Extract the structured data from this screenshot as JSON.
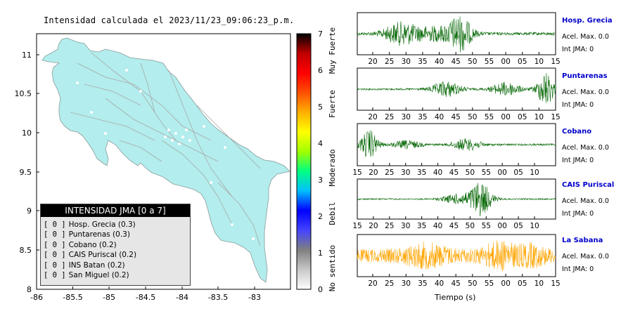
{
  "map": {
    "title": "Intensidad calculada el 2023/11/23_09:06:23_p.m.",
    "x_ticks": [
      "-86",
      "-85.5",
      "-85",
      "-84.5",
      "-84",
      "-83.5",
      "-83"
    ],
    "y_ticks": [
      "11",
      "10.5",
      "10",
      "9.5",
      "9",
      "8.5",
      "8"
    ],
    "land_color": "#b3eded",
    "border_color": "#aaaaaa"
  },
  "legend": {
    "title": "INTENSIDAD JMA [0 a 7]",
    "items": [
      {
        "box": "[ 0 ]",
        "label": "Hosp. Grecia (0.3)"
      },
      {
        "box": "[ 0 ]",
        "label": "Puntarenas (0.3)"
      },
      {
        "box": "[ 0 ]",
        "label": "Cobano (0.2)"
      },
      {
        "box": "[ 0 ]",
        "label": "CAIS Puriscal (0.2)"
      },
      {
        "box": "[ 0 ]",
        "label": "INS Batan (0.2)"
      },
      {
        "box": "[ 0 ]",
        "label": "San Miguel (0.2)"
      }
    ]
  },
  "colorbar": {
    "ticks": [
      "0",
      "1",
      "2",
      "3",
      "4",
      "5",
      "6",
      "7"
    ],
    "labels": [
      "No sentido",
      "Debil",
      "Moderado",
      "Fuerte",
      "Muy Fuerte"
    ],
    "colors": [
      "#ffffff",
      "#c8c8c8",
      "#808080",
      "#4444ff",
      "#0000ff",
      "#00c0ff",
      "#00ff80",
      "#a0ff00",
      "#ffff00",
      "#ffb000",
      "#ff5000",
      "#ff0000",
      "#c00000",
      "#000000"
    ]
  },
  "waveforms": {
    "x_axis_label": "Tiempo (s)",
    "acc_label": "Acel. Max. 0.0",
    "int_label": "Int JMA: 0",
    "stations": [
      {
        "name": "Hosp. Grecia",
        "color": "#006400",
        "ticks": [
          "20",
          "25",
          "30",
          "35",
          "40",
          "45",
          "50",
          "55",
          "00",
          "05",
          "10",
          "15"
        ],
        "shape": "grecia"
      },
      {
        "name": "Puntarenas",
        "color": "#006400",
        "ticks": [
          "20",
          "25",
          "30",
          "35",
          "40",
          "45",
          "50",
          "55",
          "00",
          "05",
          "10",
          "15"
        ],
        "shape": "puntarenas"
      },
      {
        "name": "Cobano",
        "color": "#006400",
        "ticks": [
          "15",
          "20",
          "25",
          "30",
          "35",
          "40",
          "45",
          "50",
          "55",
          "00",
          "05",
          "10"
        ],
        "shape": "cobano"
      },
      {
        "name": "CAIS Puriscal",
        "color": "#006400",
        "ticks": [
          "15",
          "20",
          "25",
          "30",
          "35",
          "40",
          "45",
          "50",
          "55",
          "00",
          "05",
          "10"
        ],
        "shape": "puriscal"
      },
      {
        "name": "La Sabana",
        "color": "#ffa500",
        "ticks": [
          "20",
          "25",
          "30",
          "35",
          "40",
          "45",
          "50",
          "55",
          "00",
          "05",
          "10",
          "15"
        ],
        "shape": "sabana"
      }
    ]
  }
}
